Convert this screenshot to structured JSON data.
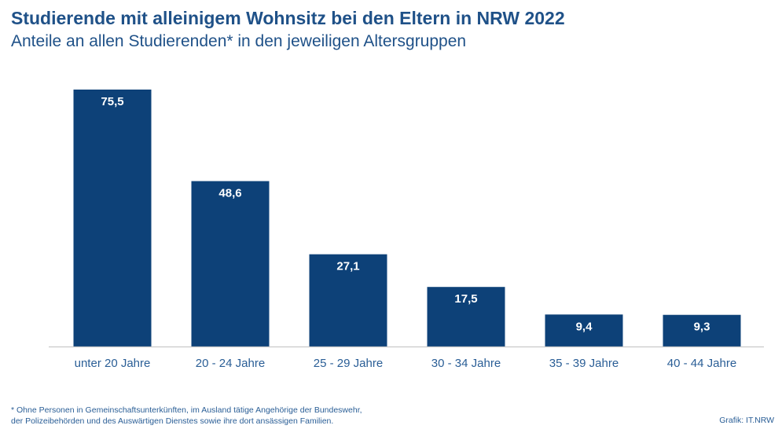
{
  "header": {
    "title": "Studierende mit alleinigem Wohnsitz bei den Eltern in NRW 2022",
    "subtitle": "Anteile an allen Studierenden* in den jeweiligen Altersgruppen"
  },
  "chart_data": {
    "type": "bar",
    "title": "Studierende mit alleinigem Wohnsitz bei den Eltern in NRW 2022",
    "subtitle": "Anteile an allen Studierenden* in den jeweiligen Altersgruppen",
    "categories": [
      "unter 20 Jahre",
      "20 - 24 Jahre",
      "25 - 29 Jahre",
      "30 - 34 Jahre",
      "35 - 39 Jahre",
      "40 - 44 Jahre"
    ],
    "values": [
      75.5,
      48.6,
      27.1,
      17.5,
      9.4,
      9.3
    ],
    "value_labels": [
      "75,5",
      "48,6",
      "27,1",
      "17,5",
      "9,4",
      "9,3"
    ],
    "xlabel": "",
    "ylabel": "",
    "ylim": [
      0,
      75.5
    ],
    "grid": false,
    "legend": "none",
    "bar_color": "#0d4178",
    "label_color": "#ffffff",
    "tick_label_color": "#2a5e96",
    "baseline_color": "#c9c9c9"
  },
  "footer": {
    "footnote_line1": "* Ohne Personen in Gemeinschaftsunterkünften, im Ausland tätige Angehörige der Bundeswehr,",
    "footnote_line2": "der Polizeibehörden und des Auswärtigen Dienstes sowie ihre dort ansässigen Familien.",
    "credit": "Grafik: IT.NRW"
  }
}
